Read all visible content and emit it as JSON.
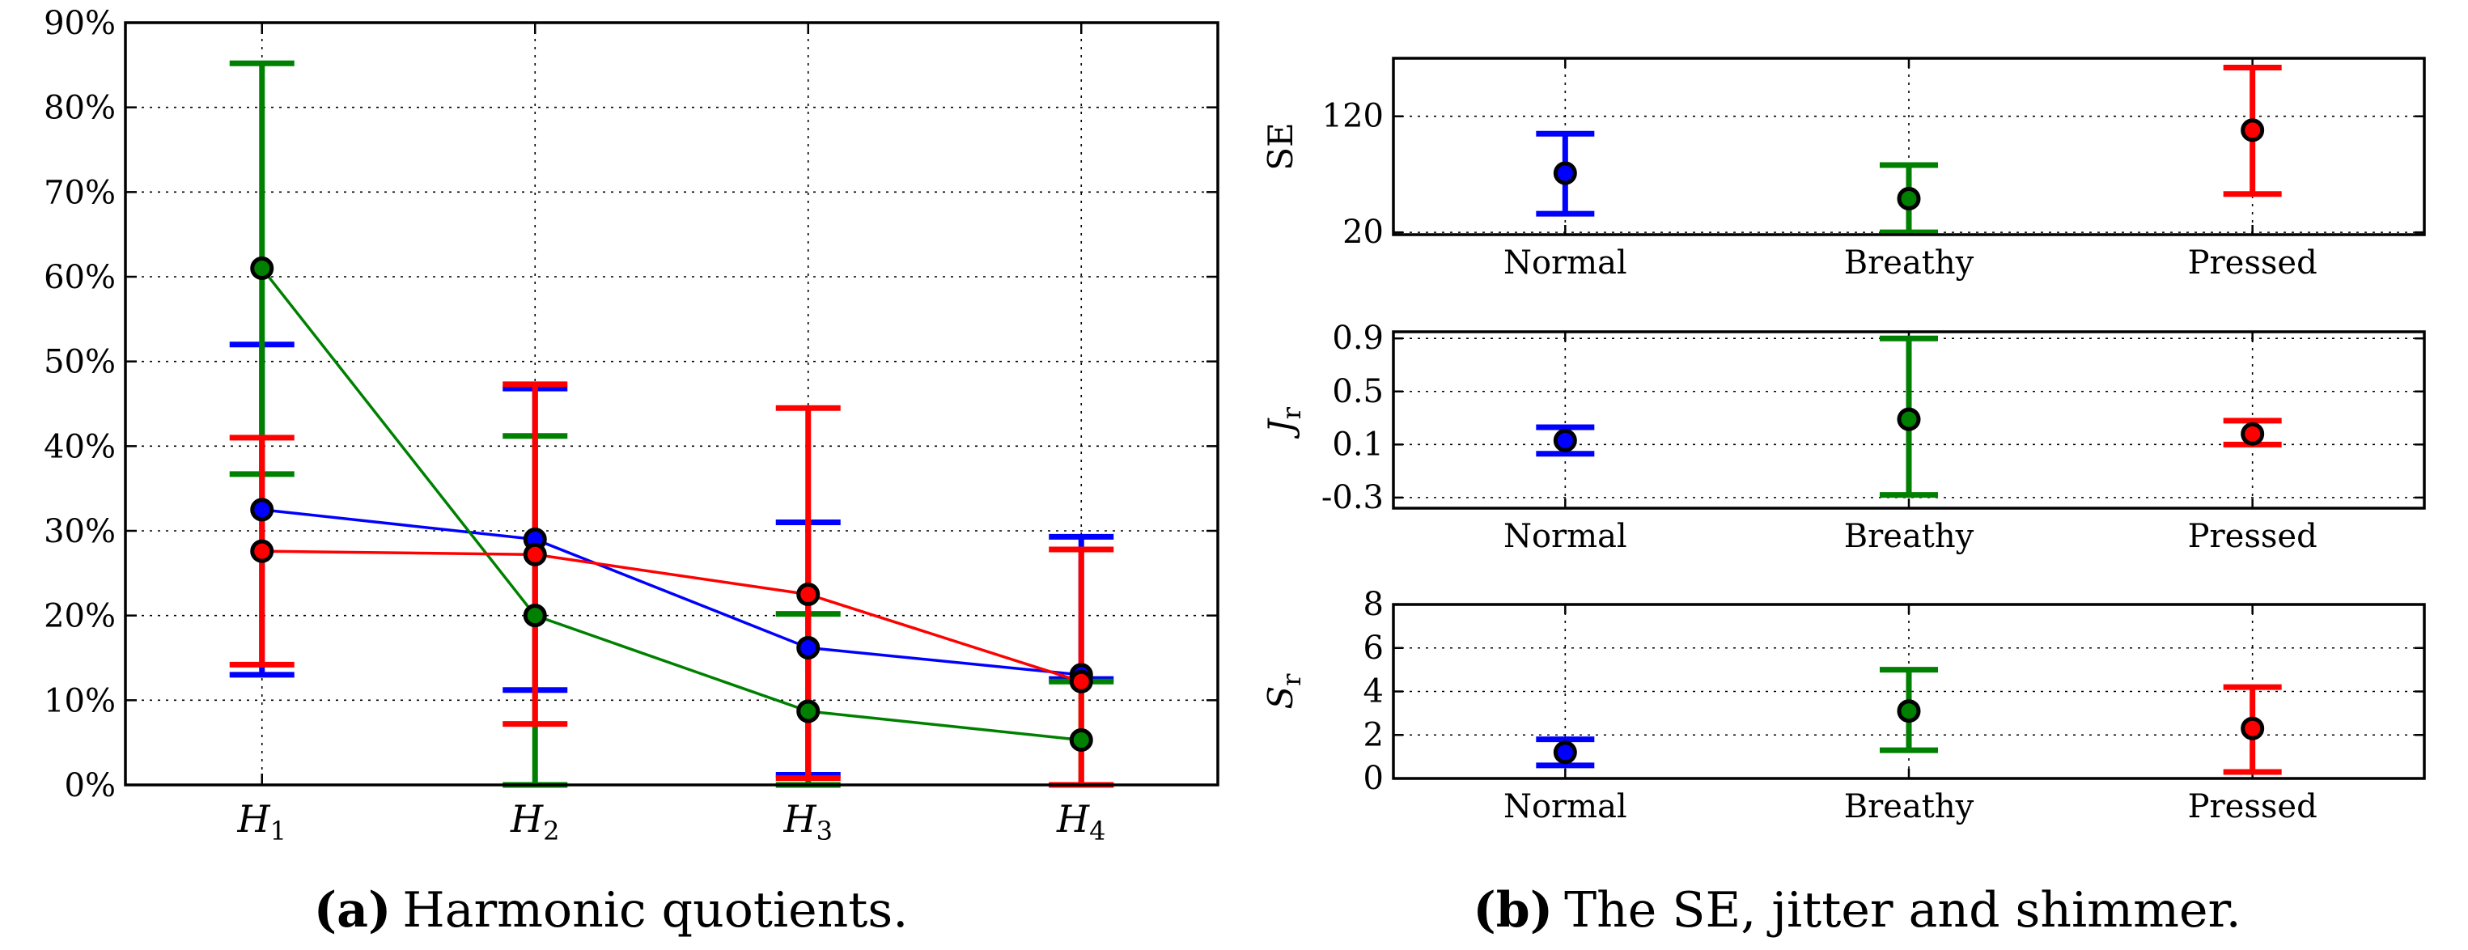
{
  "colors": {
    "normal": "#0000ff",
    "breathy": "#008000",
    "pressed": "#ff0000"
  },
  "chart_data": [
    {
      "id": "harmonic",
      "type": "line",
      "categories": [
        "H1",
        "H2",
        "H3",
        "H4"
      ],
      "category_labels": [
        {
          "main": "H",
          "sub": "1"
        },
        {
          "main": "H",
          "sub": "2"
        },
        {
          "main": "H",
          "sub": "3"
        },
        {
          "main": "H",
          "sub": "4"
        }
      ],
      "ylim": [
        0,
        90
      ],
      "yticks": [
        0,
        10,
        20,
        30,
        40,
        50,
        60,
        70,
        80,
        90
      ],
      "ytick_labels": [
        "0%",
        "10%",
        "20%",
        "30%",
        "40%",
        "50%",
        "60%",
        "70%",
        "80%",
        "90%"
      ],
      "grid": true,
      "series": [
        {
          "name": "Normal",
          "color": "#0000ff",
          "values": [
            32.5,
            29.0,
            16.2,
            13.0
          ],
          "lower": [
            13.0,
            11.2,
            1.2,
            12.5
          ],
          "upper": [
            52.0,
            46.8,
            31.0,
            29.3
          ]
        },
        {
          "name": "Breathy",
          "color": "#008000",
          "values": [
            61.0,
            20.0,
            8.7,
            5.3
          ],
          "lower": [
            36.7,
            0.0,
            0.0,
            0.0
          ],
          "upper": [
            85.2,
            41.2,
            20.2,
            12.2
          ]
        },
        {
          "name": "Pressed",
          "color": "#ff0000",
          "values": [
            27.6,
            27.2,
            22.5,
            12.2
          ],
          "lower": [
            14.2,
            7.2,
            0.8,
            0.0
          ],
          "upper": [
            41.0,
            47.3,
            44.5,
            27.8
          ]
        }
      ],
      "caption": {
        "label": "(a)",
        "text": "Harmonic quotients."
      }
    },
    {
      "id": "se",
      "type": "scatter",
      "ylabel": "SE",
      "categories": [
        "Normal",
        "Breathy",
        "Pressed"
      ],
      "ylim": [
        18,
        170
      ],
      "yticks": [
        20,
        120
      ],
      "ytick_labels": [
        "20",
        "120"
      ],
      "grid": true,
      "points": [
        {
          "category": "Normal",
          "color": "#0000ff",
          "value": 71,
          "lower": 36,
          "upper": 105
        },
        {
          "category": "Breathy",
          "color": "#008000",
          "value": 49,
          "lower": 20,
          "upper": 78
        },
        {
          "category": "Pressed",
          "color": "#ff0000",
          "value": 108,
          "lower": 53,
          "upper": 162
        }
      ]
    },
    {
      "id": "jitter",
      "type": "scatter",
      "ylabel": {
        "main": "J",
        "sub": "r"
      },
      "categories": [
        "Normal",
        "Breathy",
        "Pressed"
      ],
      "ylim": [
        -0.38,
        0.95
      ],
      "yticks": [
        -0.3,
        0.1,
        0.5,
        0.9
      ],
      "ytick_labels": [
        "-0.3",
        "0.1",
        "0.5",
        "0.9"
      ],
      "grid": true,
      "points": [
        {
          "category": "Normal",
          "color": "#0000ff",
          "value": 0.13,
          "lower": 0.03,
          "upper": 0.23
        },
        {
          "category": "Breathy",
          "color": "#008000",
          "value": 0.29,
          "lower": -0.28,
          "upper": 0.9
        },
        {
          "category": "Pressed",
          "color": "#ff0000",
          "value": 0.18,
          "lower": 0.1,
          "upper": 0.28
        }
      ]
    },
    {
      "id": "shimmer",
      "type": "scatter",
      "ylabel": {
        "main": "S",
        "sub": "r"
      },
      "categories": [
        "Normal",
        "Breathy",
        "Pressed"
      ],
      "ylim": [
        0,
        8
      ],
      "yticks": [
        0,
        2,
        4,
        6,
        8
      ],
      "ytick_labels": [
        "0",
        "2",
        "4",
        "6",
        "8"
      ],
      "grid": true,
      "points": [
        {
          "category": "Normal",
          "color": "#0000ff",
          "value": 1.2,
          "lower": 0.6,
          "upper": 1.8
        },
        {
          "category": "Breathy",
          "color": "#008000",
          "value": 3.1,
          "lower": 1.3,
          "upper": 5.0
        },
        {
          "category": "Pressed",
          "color": "#ff0000",
          "value": 2.3,
          "lower": 0.3,
          "upper": 4.2
        }
      ]
    }
  ],
  "caption_b": {
    "label": "(b)",
    "text": "The SE, jitter and shimmer."
  }
}
